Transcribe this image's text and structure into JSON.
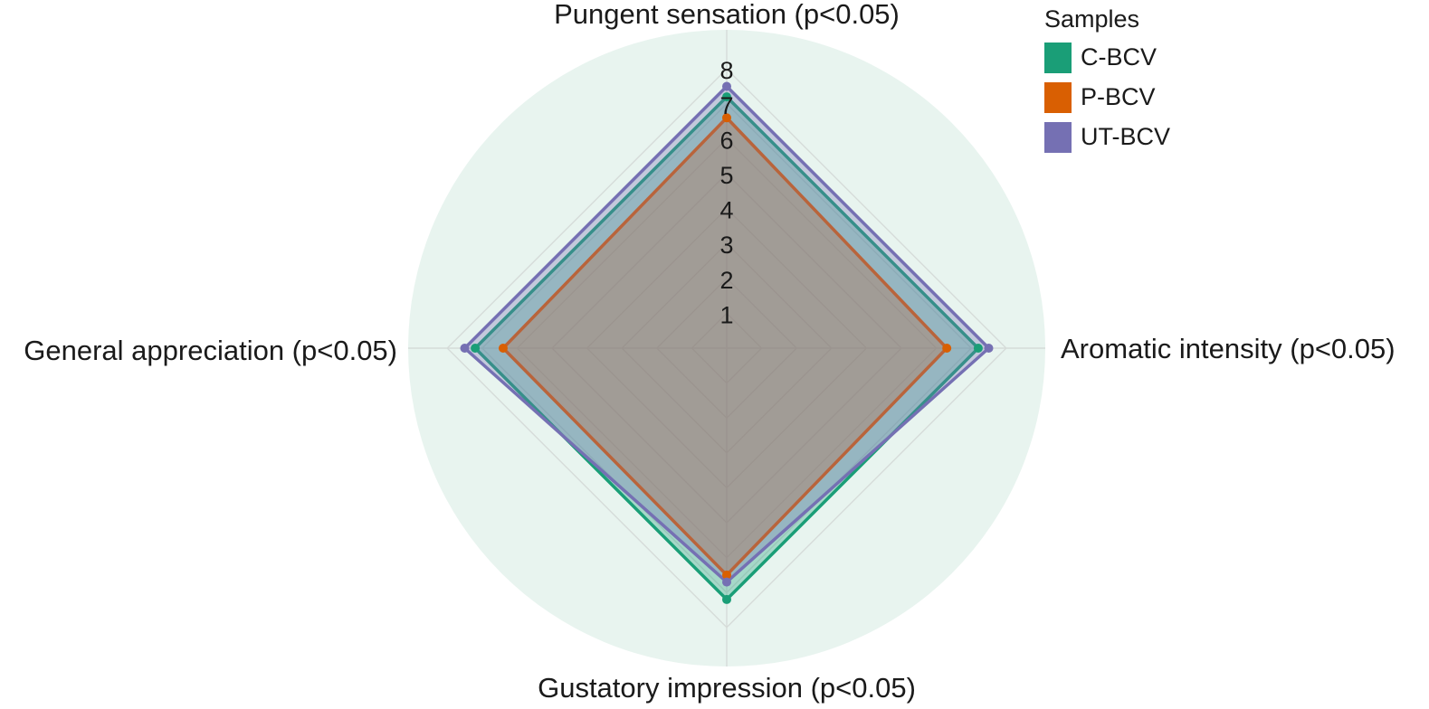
{
  "chart_data": {
    "type": "radar",
    "axes": [
      "Pungent sensation (p<0.05)",
      "Aromatic intensity (p<0.05)",
      "Gustatory impression (p<0.05)",
      "General appreciation (p<0.05)"
    ],
    "radial_ticks": [
      "1",
      "2",
      "3",
      "4",
      "5",
      "6",
      "7",
      "8"
    ],
    "rmax": 8,
    "legend": {
      "title": "Samples",
      "position": "top-right"
    },
    "series": [
      {
        "name": "C-BCV",
        "color": "#1a9e77",
        "values": [
          7.2,
          7.2,
          7.2,
          7.2
        ]
      },
      {
        "name": "P-BCV",
        "color": "#d95f02",
        "values": [
          6.6,
          6.3,
          6.5,
          6.4
        ]
      },
      {
        "name": "UT-BCV",
        "color": "#7570b3",
        "values": [
          7.5,
          7.5,
          6.7,
          7.5
        ]
      }
    ],
    "background_color": "#e8f4ef",
    "grid_color": "#d6dcd9"
  }
}
